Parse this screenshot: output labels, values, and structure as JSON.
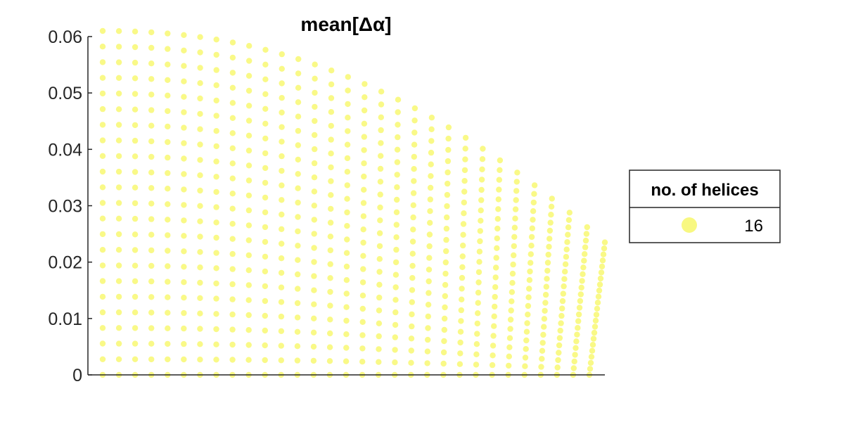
{
  "chart_data": {
    "type": "scatter",
    "title": "mean[Δα]",
    "xlabel": "",
    "ylabel": "",
    "ylim": [
      0,
      0.06
    ],
    "yticks": [
      0,
      0.01,
      0.02,
      0.03,
      0.04,
      0.05,
      0.06
    ],
    "ytick_labels": [
      "0",
      "0.01",
      "0.02",
      "0.03",
      "0.04",
      "0.05",
      "0.06"
    ],
    "x_axis_ticks_shown": false,
    "xlim": [
      0,
      1
    ],
    "marker_color": "#f8f87a",
    "grid": false,
    "legend": {
      "placement": "right",
      "title": "no. of helices",
      "entries": [
        {
          "label": "16",
          "color": "#f8f87a"
        }
      ]
    },
    "series": [
      {
        "description_key": "dot-grid",
        "column_count": 31,
        "row_count": 23,
        "envelope_max_y": 0.061,
        "envelope_end_y": 0.0235
      }
    ]
  }
}
